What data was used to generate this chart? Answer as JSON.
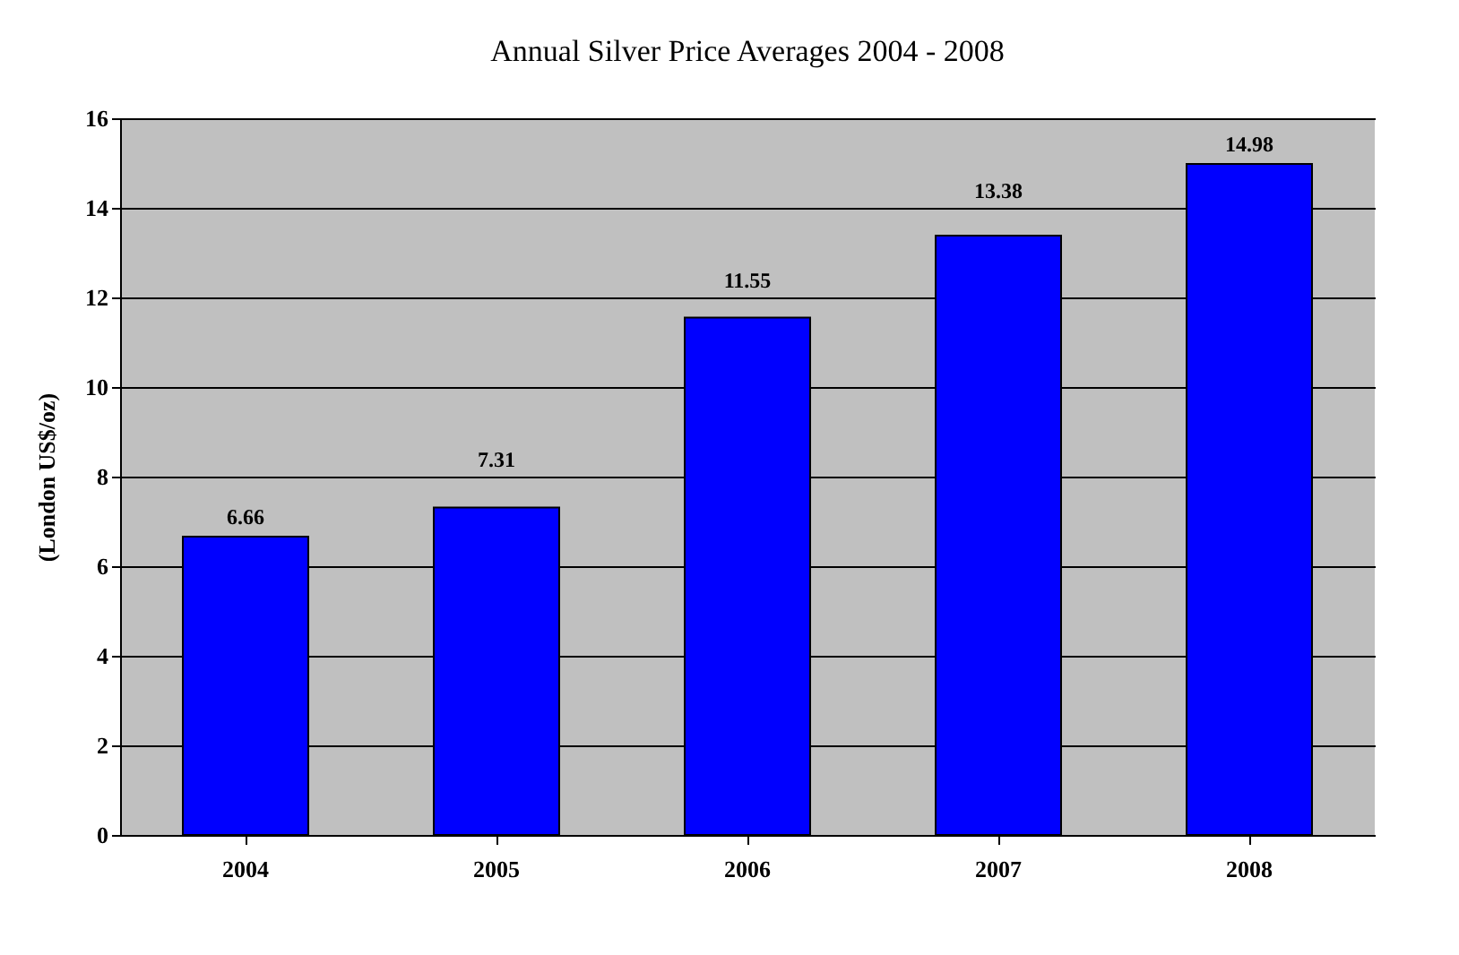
{
  "chart_data": {
    "type": "bar",
    "title": "Annual  Silver Price Averages 2004 - 2008",
    "ylabel": "(London US$/oz)",
    "categories": [
      "2004",
      "2005",
      "2006",
      "2007",
      "2008"
    ],
    "values": [
      6.66,
      7.31,
      11.55,
      13.38,
      14.98
    ],
    "color": "#0000ff",
    "ylim": [
      0,
      16
    ],
    "yticks": [
      0,
      2,
      4,
      6,
      8,
      10,
      12,
      14,
      16
    ],
    "grid": "y",
    "data_labels": true
  }
}
